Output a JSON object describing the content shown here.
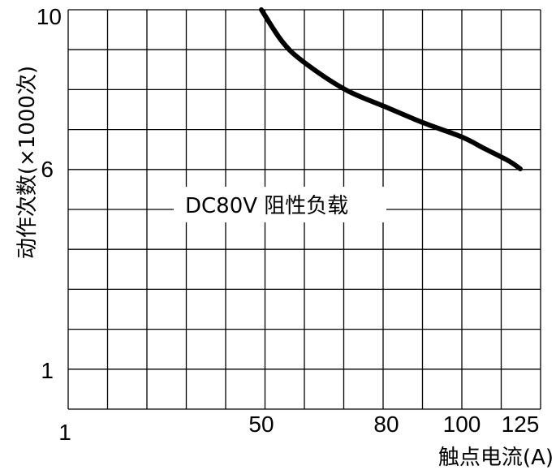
{
  "chart_data": {
    "type": "line",
    "xlabel": "触点电流(A)",
    "ylabel": "动作次数(×1000次)",
    "x_ticks": [
      "1",
      "50",
      "80",
      "100",
      "125"
    ],
    "y_ticks": [
      "10",
      "6",
      "1"
    ],
    "annotation": "DC80V 阻性负载",
    "grid": true,
    "series": [
      {
        "color": "#000000",
        "x": [
          50,
          55,
          60,
          70,
          80,
          90,
          100,
          110,
          120,
          125
        ],
        "y": [
          10,
          9.2,
          8.7,
          8.0,
          7.55,
          7.15,
          6.8,
          6.5,
          6.2,
          6.0
        ]
      }
    ]
  }
}
